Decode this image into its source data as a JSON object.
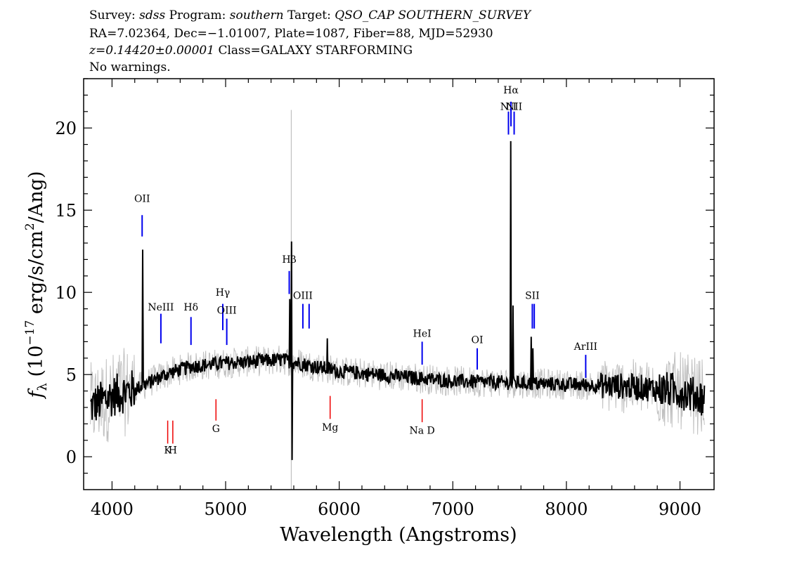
{
  "header": {
    "line1": {
      "survey_key": "Survey:",
      "survey": "sdss",
      "program_key": "Program:",
      "program": "southern",
      "target_key": "Target:",
      "target": "QSO_CAP SOUTHERN_SURVEY"
    },
    "line2": "RA=7.02364, Dec=−1.01007, Plate=1087, Fiber=88, MJD=52930",
    "line3": {
      "redshift": "z=0.14420±0.00001",
      "class": "Class=GALAXY STARFORMING"
    },
    "line4": "No warnings."
  },
  "chart_data": {
    "type": "line",
    "xlabel": "Wavelength (Angstroms)",
    "ylabel_parts": {
      "f": "f",
      "sub": "λ",
      "open": " (10",
      "exp1": "−17",
      "mid": " erg/s/cm",
      "exp2": "2",
      "close": "/Ang)"
    },
    "xlim": [
      3750,
      9300
    ],
    "ylim": [
      -2,
      23
    ],
    "x_ticks": [
      4000,
      5000,
      6000,
      7000,
      8000,
      9000
    ],
    "y_ticks": [
      0,
      5,
      10,
      15,
      20
    ],
    "x_tick_labels": [
      "4000",
      "5000",
      "6000",
      "7000",
      "8000",
      "9000"
    ],
    "y_tick_labels": [
      "0",
      "5",
      "10",
      "15",
      "20"
    ],
    "colors": {
      "flux": "#000000",
      "error": "#c0c0c0",
      "emission": "#0000ee",
      "absorption": "#ee0000"
    },
    "continuum": [
      [
        3800,
        3.0
      ],
      [
        4000,
        3.7
      ],
      [
        4200,
        4.1
      ],
      [
        4500,
        5.1
      ],
      [
        4700,
        5.5
      ],
      [
        5000,
        5.7
      ],
      [
        5500,
        5.9
      ],
      [
        6000,
        5.2
      ],
      [
        6500,
        4.9
      ],
      [
        7000,
        4.6
      ],
      [
        7500,
        4.5
      ],
      [
        8000,
        4.4
      ],
      [
        8500,
        4.3
      ],
      [
        9000,
        4.0
      ],
      [
        9200,
        3.6
      ]
    ],
    "emission_peaks": [
      {
        "x": 4270,
        "y": 12.6
      },
      {
        "x": 5565,
        "y": 9.6
      },
      {
        "x": 5580,
        "y": 13.1
      },
      {
        "x": 5585,
        "y": -0.2
      },
      {
        "x": 5895,
        "y": 7.2
      },
      {
        "x": 7508,
        "y": 15.0
      },
      {
        "x": 7512,
        "y": 19.2
      },
      {
        "x": 7528,
        "y": 9.2
      },
      {
        "x": 7690,
        "y": 7.3
      },
      {
        "x": 7705,
        "y": 6.6
      }
    ],
    "emission_lines": [
      {
        "label": "OII",
        "x": 4265,
        "y_bottom": 13.4,
        "y_top": 14.7,
        "label_y": 15.5
      },
      {
        "label": "NeIII",
        "x": 4430,
        "y_bottom": 6.9,
        "y_top": 8.7,
        "label_y": 8.9
      },
      {
        "label": "Hδ",
        "x": 4695,
        "y_bottom": 6.8,
        "y_top": 8.5,
        "label_y": 8.9
      },
      {
        "label": "Hγ",
        "x": 4975,
        "y_bottom": 7.7,
        "y_top": 9.3,
        "label_y": 9.8
      },
      {
        "label": "OIII",
        "x": 5010,
        "y_bottom": 6.8,
        "y_top": 8.4,
        "label_y": 8.7
      },
      {
        "label": "Hβ",
        "x": 5560,
        "y_bottom": 9.9,
        "y_top": 11.3,
        "label_y": 11.8
      },
      {
        "label": "OIII",
        "x": 5680,
        "y_bottom": 7.8,
        "y_top": 9.3,
        "label_y": 9.6
      },
      {
        "label": "OIII",
        "x": 5735,
        "y_bottom": 7.8,
        "y_top": 9.3,
        "label_y": null
      },
      {
        "label": "HeI",
        "x": 6730,
        "y_bottom": 5.6,
        "y_top": 7.0,
        "label_y": 7.3
      },
      {
        "label": "OI",
        "x": 7215,
        "y_bottom": 5.3,
        "y_top": 6.6,
        "label_y": 6.9
      },
      {
        "label": "NII",
        "x": 7490,
        "y_bottom": 19.6,
        "y_top": 21.0,
        "label_y": 21.1
      },
      {
        "label": "Hα",
        "x": 7512,
        "y_bottom": 20.1,
        "y_top": 21.6,
        "label_y": 22.1
      },
      {
        "label": "NII",
        "x": 7540,
        "y_bottom": 19.6,
        "y_top": 21.0,
        "label_y": 21.1
      },
      {
        "label": "SII",
        "x": 7700,
        "y_bottom": 7.8,
        "y_top": 9.3,
        "label_y": 9.6
      },
      {
        "label": "SII",
        "x": 7717,
        "y_bottom": 7.8,
        "y_top": 9.3,
        "label_y": null
      },
      {
        "label": "ArIII",
        "x": 8170,
        "y_bottom": 4.8,
        "y_top": 6.2,
        "label_y": 6.5
      }
    ],
    "absorption_lines": [
      {
        "label": "K",
        "x": 4490,
        "y_top": 2.2,
        "y_bottom": 0.8,
        "label_y": 0.2
      },
      {
        "label": "H",
        "x": 4535,
        "y_top": 2.2,
        "y_bottom": 0.8,
        "label_y": 0.2
      },
      {
        "label": "G",
        "x": 4915,
        "y_top": 3.5,
        "y_bottom": 2.2,
        "label_y": 1.5
      },
      {
        "label": "Mg",
        "x": 5920,
        "y_top": 3.7,
        "y_bottom": 2.3,
        "label_y": 1.6
      },
      {
        "label": "Na D",
        "x": 6730,
        "y_top": 3.5,
        "y_bottom": 2.1,
        "label_y": 1.4
      }
    ]
  }
}
